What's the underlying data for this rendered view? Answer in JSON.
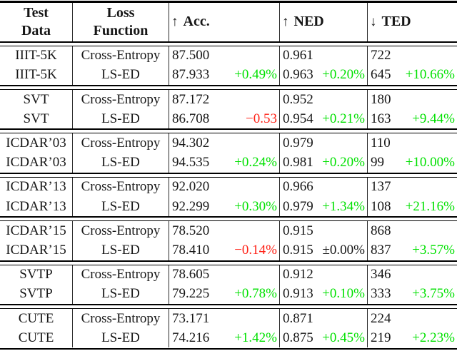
{
  "meta": {
    "background_color": "#ffffff",
    "text_color": "#161616",
    "positive_color": "#00e100",
    "negative_color": "#ff2015",
    "rule_color": "#000000"
  },
  "table": {
    "header": {
      "test_data_line1": "Test",
      "test_data_line2": "Data",
      "loss_line1": "Loss",
      "loss_line2": "Function",
      "metrics": [
        {
          "arrow": "↑",
          "label": "Acc."
        },
        {
          "arrow": "↑",
          "label": "NED"
        },
        {
          "arrow": "↓",
          "label": "TED"
        }
      ]
    },
    "blocks": [
      {
        "dataset": "IIIT-5K",
        "rows": [
          {
            "loss": "Cross-Entropy",
            "acc": "87.500",
            "acc_delta": "",
            "acc_delta_type": "none",
            "ned": "0.961",
            "ned_delta": "",
            "ned_delta_type": "none",
            "ted": "722",
            "ted_delta": "",
            "ted_delta_type": "none"
          },
          {
            "loss": "LS-ED",
            "acc": "87.933",
            "acc_delta": "+0.49%",
            "acc_delta_type": "pos",
            "ned": "0.963",
            "ned_delta": "+0.20%",
            "ned_delta_type": "pos",
            "ted": "645",
            "ted_delta": "+10.66%",
            "ted_delta_type": "pos"
          }
        ]
      },
      {
        "dataset": "SVT",
        "rows": [
          {
            "loss": "Cross-Entropy",
            "acc": "87.172",
            "acc_delta": "",
            "acc_delta_type": "none",
            "ned": "0.952",
            "ned_delta": "",
            "ned_delta_type": "none",
            "ted": "180",
            "ted_delta": "",
            "ted_delta_type": "none"
          },
          {
            "loss": "LS-ED",
            "acc": "86.708",
            "acc_delta": "−0.53",
            "acc_delta_type": "neg",
            "ned": "0.954",
            "ned_delta": "+0.21%",
            "ned_delta_type": "pos",
            "ted": "163",
            "ted_delta": "+9.44%",
            "ted_delta_type": "pos"
          }
        ]
      },
      {
        "dataset": "ICDAR’03",
        "rows": [
          {
            "loss": "Cross-Entropy",
            "acc": "94.302",
            "acc_delta": "",
            "acc_delta_type": "none",
            "ned": "0.979",
            "ned_delta": "",
            "ned_delta_type": "none",
            "ted": "110",
            "ted_delta": "",
            "ted_delta_type": "none"
          },
          {
            "loss": "LS-ED",
            "acc": "94.535",
            "acc_delta": "+0.24%",
            "acc_delta_type": "pos",
            "ned": "0.981",
            "ned_delta": "+0.20%",
            "ned_delta_type": "pos",
            "ted": "99",
            "ted_delta": "+10.00%",
            "ted_delta_type": "pos"
          }
        ]
      },
      {
        "dataset": "ICDAR’13",
        "rows": [
          {
            "loss": "Cross-Entropy",
            "acc": "92.020",
            "acc_delta": "",
            "acc_delta_type": "none",
            "ned": "0.966",
            "ned_delta": "",
            "ned_delta_type": "none",
            "ted": "137",
            "ted_delta": "",
            "ted_delta_type": "none"
          },
          {
            "loss": "LS-ED",
            "acc": "92.299",
            "acc_delta": "+0.30%",
            "acc_delta_type": "pos",
            "ned": "0.979",
            "ned_delta": "+1.34%",
            "ned_delta_type": "pos",
            "ted": "108",
            "ted_delta": "+21.16%",
            "ted_delta_type": "pos"
          }
        ]
      },
      {
        "dataset": "ICDAR’15",
        "rows": [
          {
            "loss": "Cross-Entropy",
            "acc": "78.520",
            "acc_delta": "",
            "acc_delta_type": "none",
            "ned": "0.915",
            "ned_delta": "",
            "ned_delta_type": "none",
            "ted": "868",
            "ted_delta": "",
            "ted_delta_type": "none"
          },
          {
            "loss": "LS-ED",
            "acc": "78.410",
            "acc_delta": "−0.14%",
            "acc_delta_type": "neg",
            "ned": "0.915",
            "ned_delta": "±0.00%",
            "ned_delta_type": "neu",
            "ted": "837",
            "ted_delta": "+3.57%",
            "ted_delta_type": "pos"
          }
        ]
      },
      {
        "dataset": "SVTP",
        "rows": [
          {
            "loss": "Cross-Entropy",
            "acc": "78.605",
            "acc_delta": "",
            "acc_delta_type": "none",
            "ned": "0.912",
            "ned_delta": "",
            "ned_delta_type": "none",
            "ted": "346",
            "ted_delta": "",
            "ted_delta_type": "none"
          },
          {
            "loss": "LS-ED",
            "acc": "79.225",
            "acc_delta": "+0.78%",
            "acc_delta_type": "pos",
            "ned": "0.913",
            "ned_delta": "+0.10%",
            "ned_delta_type": "pos",
            "ted": "333",
            "ted_delta": "+3.75%",
            "ted_delta_type": "pos"
          }
        ]
      },
      {
        "dataset": "CUTE",
        "rows": [
          {
            "loss": "Cross-Entropy",
            "acc": "73.171",
            "acc_delta": "",
            "acc_delta_type": "none",
            "ned": "0.871",
            "ned_delta": "",
            "ned_delta_type": "none",
            "ted": "224",
            "ted_delta": "",
            "ted_delta_type": "none"
          },
          {
            "loss": "LS-ED",
            "acc": "74.216",
            "acc_delta": "+1.42%",
            "acc_delta_type": "pos",
            "ned": "0.875",
            "ned_delta": "+0.45%",
            "ned_delta_type": "pos",
            "ted": "219",
            "ted_delta": "+2.23%",
            "ted_delta_type": "pos"
          }
        ]
      }
    ]
  }
}
